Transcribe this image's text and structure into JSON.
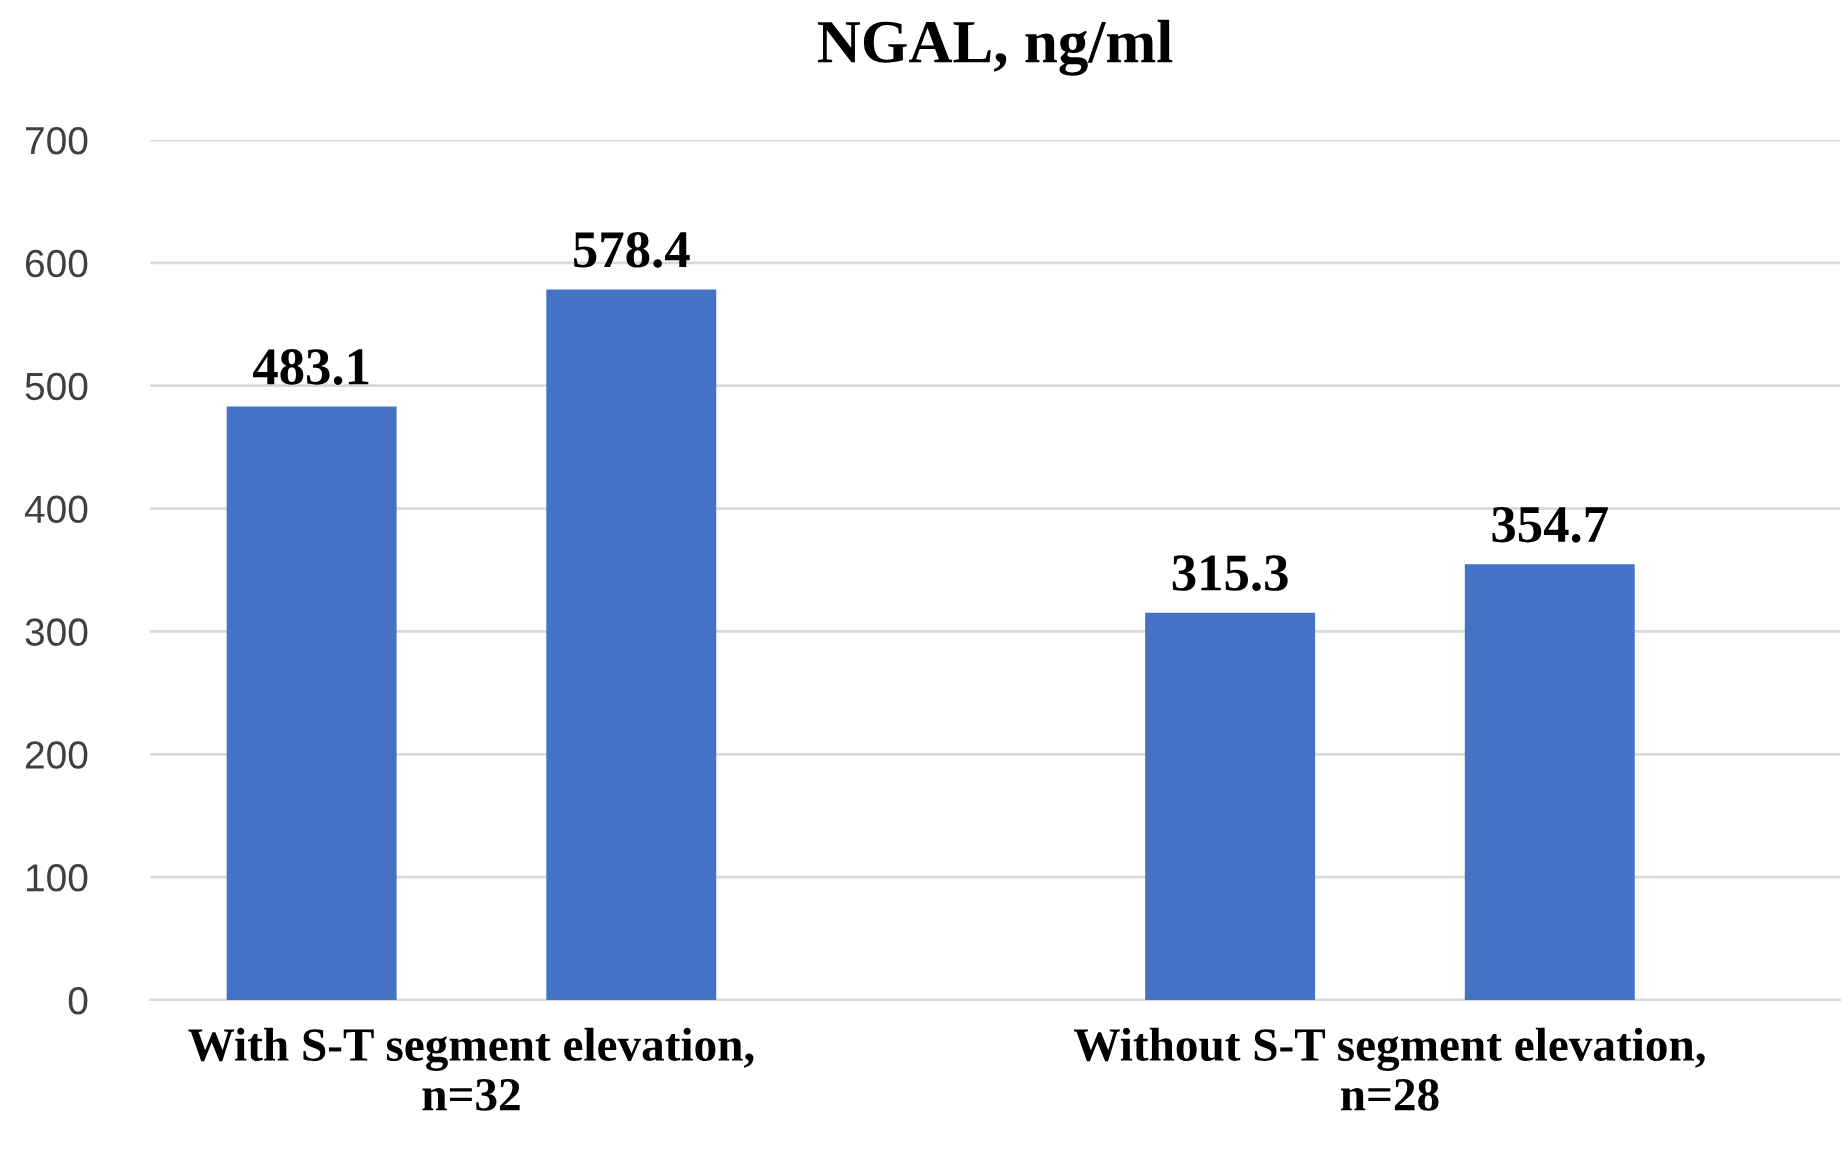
{
  "chart_data": {
    "type": "bar",
    "title": "NGAL, ng/ml",
    "categories": [
      "With S-T segment elevation,\nn=32",
      "Without S-T segment elevation,\nn=28"
    ],
    "series": [
      {
        "color": "#4472c4",
        "values": [
          483.1,
          315.3
        ]
      },
      {
        "color": "#4472c4",
        "values": [
          578.4,
          354.7
        ]
      }
    ],
    "ylim": [
      0,
      700
    ],
    "yticks": [
      0,
      100,
      200,
      300,
      400,
      500,
      600,
      700
    ],
    "grid": "y",
    "data_labels": true
  }
}
